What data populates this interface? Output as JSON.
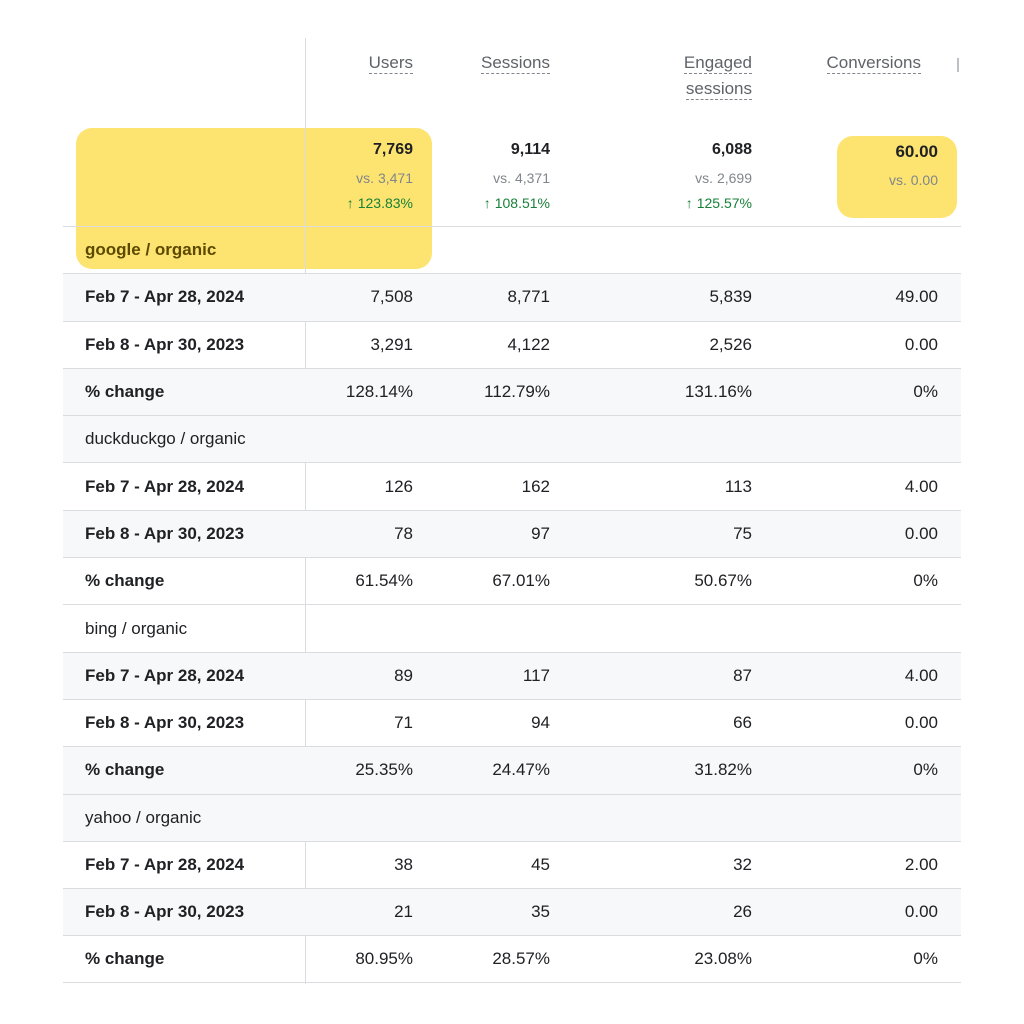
{
  "header": {
    "users": "Users",
    "sessions": "Sessions",
    "engaged": "Engaged sessions",
    "conversions": "Conversions"
  },
  "totals": {
    "users": {
      "value": "7,769",
      "vs": "vs. 3,471",
      "change": "123.83%"
    },
    "sessions": {
      "value": "9,114",
      "vs": "vs. 4,371",
      "change": "108.51%"
    },
    "engaged": {
      "value": "6,088",
      "vs": "vs. 2,699",
      "change": "125.57%"
    },
    "conversions": {
      "value": "60.00",
      "vs": "vs. 0.00"
    }
  },
  "groups": [
    {
      "name": "google / organic",
      "rows": [
        {
          "label": "Feb 7 - Apr 28, 2024",
          "users": "7,508",
          "sessions": "8,771",
          "engaged": "5,839",
          "conversions": "49.00"
        },
        {
          "label": "Feb 8 - Apr 30, 2023",
          "users": "3,291",
          "sessions": "4,122",
          "engaged": "2,526",
          "conversions": "0.00"
        },
        {
          "label": "% change",
          "users": "128.14%",
          "sessions": "112.79%",
          "engaged": "131.16%",
          "conversions": "0%"
        }
      ]
    },
    {
      "name": "duckduckgo / organic",
      "rows": [
        {
          "label": "Feb 7 - Apr 28, 2024",
          "users": "126",
          "sessions": "162",
          "engaged": "113",
          "conversions": "4.00"
        },
        {
          "label": "Feb 8 - Apr 30, 2023",
          "users": "78",
          "sessions": "97",
          "engaged": "75",
          "conversions": "0.00"
        },
        {
          "label": "% change",
          "users": "61.54%",
          "sessions": "67.01%",
          "engaged": "50.67%",
          "conversions": "0%"
        }
      ]
    },
    {
      "name": "bing / organic",
      "rows": [
        {
          "label": "Feb 7 - Apr 28, 2024",
          "users": "89",
          "sessions": "117",
          "engaged": "87",
          "conversions": "4.00"
        },
        {
          "label": "Feb 8 - Apr 30, 2023",
          "users": "71",
          "sessions": "94",
          "engaged": "66",
          "conversions": "0.00"
        },
        {
          "label": "% change",
          "users": "25.35%",
          "sessions": "24.47%",
          "engaged": "31.82%",
          "conversions": "0%"
        }
      ]
    },
    {
      "name": "yahoo / organic",
      "rows": [
        {
          "label": "Feb 7 - Apr 28, 2024",
          "users": "38",
          "sessions": "45",
          "engaged": "32",
          "conversions": "2.00"
        },
        {
          "label": "Feb 8 - Apr 30, 2023",
          "users": "21",
          "sessions": "35",
          "engaged": "26",
          "conversions": "0.00"
        },
        {
          "label": "% change",
          "users": "80.95%",
          "sessions": "28.57%",
          "engaged": "23.08%",
          "conversions": "0%"
        }
      ]
    }
  ],
  "colors": {
    "highlight": "#fde264",
    "positive_change": "#188038",
    "row_shade": "#f7f8fa"
  },
  "icons": {
    "change_up": "arrow-up-icon"
  }
}
